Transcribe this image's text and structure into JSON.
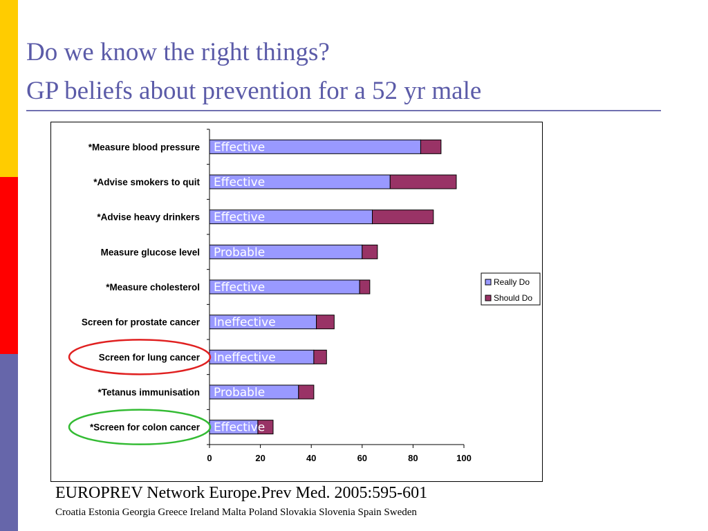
{
  "slide": {
    "title_line1": "Do we know the right things?",
    "title_line2": "GP beliefs about prevention for a 52 yr male",
    "source": "EUROPREV Network Europe.Prev Med. 2005:595-601",
    "countries": "Croatia Estonia Georgia Greece Ireland Malta Poland Slovakia Slovenia Spain Sweden"
  },
  "colors": {
    "title": "#5B5BA8",
    "side_bar_top": "#FFCC00",
    "side_bar_middle": "#FF0000",
    "side_bar_bottom": "#6666AA",
    "really_do": "#9999FF",
    "should_do": "#993366",
    "bar_label": "#FFFFFF",
    "circle_lung": "#E02020",
    "circle_colon": "#33BB33"
  },
  "chart_data": {
    "type": "bar",
    "orientation": "horizontal",
    "stacked": true,
    "categories": [
      "*Measure blood pressure",
      "*Advise smokers to quit",
      "*Advise heavy drinkers",
      "Measure glucose level",
      "*Measure cholesterol",
      "Screen for prostate cancer",
      "Screen for lung cancer",
      "*Tetanus immunisation",
      "*Screen for colon cancer"
    ],
    "series": [
      {
        "name": "Really Do",
        "values": [
          83,
          71,
          64,
          60,
          59,
          42,
          41,
          35,
          19
        ]
      },
      {
        "name": "Should Do",
        "values": [
          8,
          26,
          24,
          6,
          4,
          7,
          5,
          6,
          6
        ]
      }
    ],
    "bar_labels": [
      "Effective",
      "Effective",
      "Effective",
      "Probable",
      "Effective",
      "Ineffective",
      "Ineffective",
      "Probable",
      "Effective"
    ],
    "circled_categories": [
      {
        "category": "Screen for lung cancer",
        "color": "red"
      },
      {
        "category": "*Screen for colon cancer",
        "color": "green"
      }
    ],
    "x_ticks": [
      0,
      20,
      40,
      60,
      80,
      100
    ],
    "xlim": [
      0,
      100
    ],
    "legend_position": "right",
    "grid": false
  }
}
